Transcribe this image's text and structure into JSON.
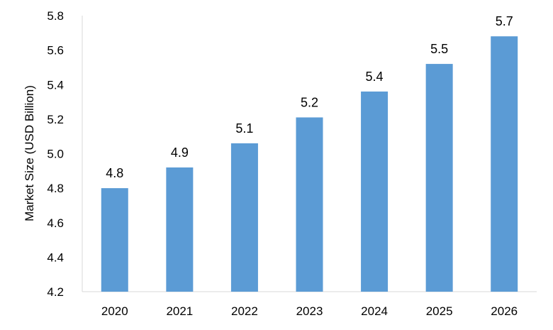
{
  "chart_data": {
    "type": "bar",
    "title": "",
    "xlabel": "",
    "ylabel": "Market Size (USD Billion)",
    "categories": [
      "2020",
      "2021",
      "2022",
      "2023",
      "2024",
      "2025",
      "2026"
    ],
    "values": [
      4.8,
      4.92,
      5.06,
      5.21,
      5.36,
      5.52,
      5.68
    ],
    "data_labels": [
      "4.8",
      "4.9",
      "5.1",
      "5.2",
      "5.4",
      "5.5",
      "5.7"
    ],
    "ylim": [
      4.2,
      5.8
    ],
    "yticks": [
      "4.2",
      "4.4",
      "4.6",
      "4.8",
      "5.0",
      "5.2",
      "5.4",
      "5.6",
      "5.8"
    ],
    "grid": false,
    "legend": "none",
    "bar_color": "#5b9bd5"
  }
}
